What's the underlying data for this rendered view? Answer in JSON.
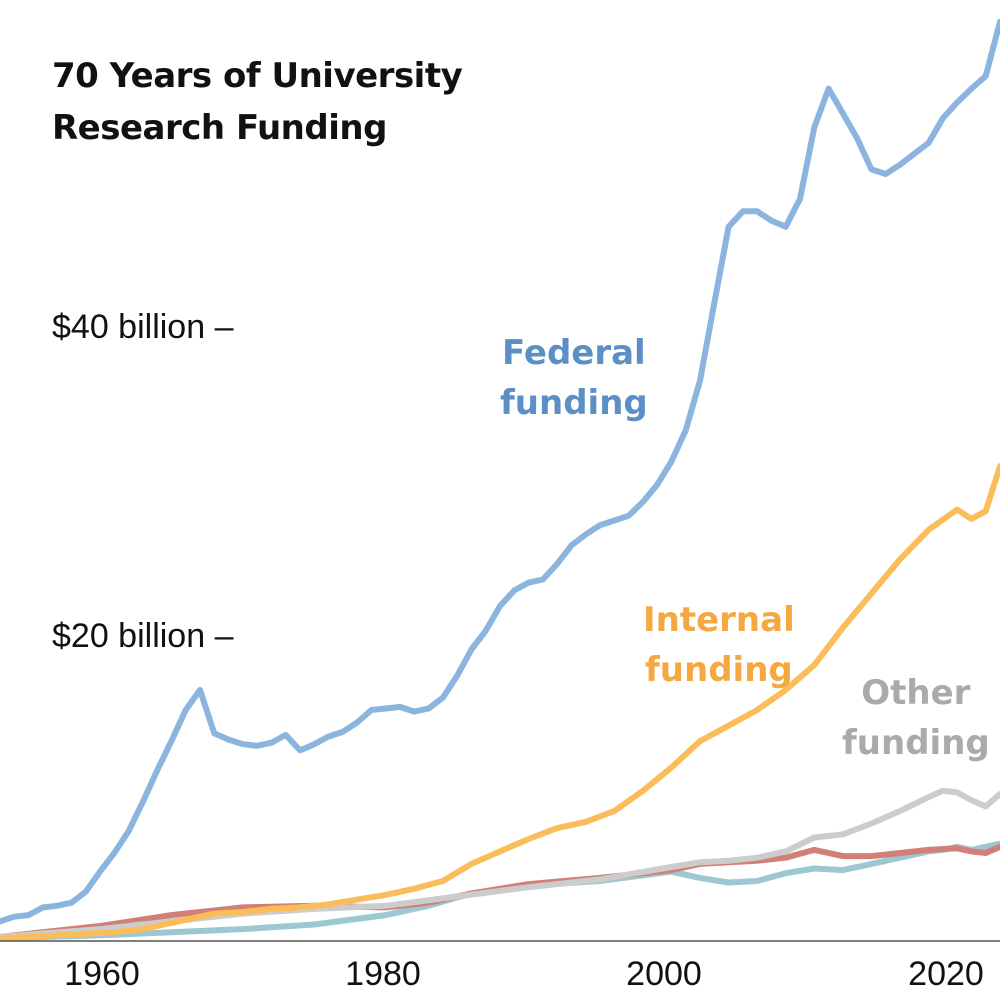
{
  "chart_data": {
    "type": "line",
    "title": "70 Years of University Research Funding",
    "title_lines": [
      "70 Years of University",
      "Research Funding"
    ],
    "xlim": [
      1953,
      2023
    ],
    "ylim": [
      0,
      60.5
    ],
    "x_ticks": [
      1960,
      1980,
      2000,
      2020
    ],
    "x_tick_labels": [
      "1960",
      "1980",
      "2000",
      "2020"
    ],
    "y_ticks": [
      20,
      40
    ],
    "y_tick_labels": [
      "$20 billion –",
      "$40 billion –"
    ],
    "grid": false,
    "legend": "inline labels",
    "series": [
      {
        "name": "Federal funding",
        "label_lines": [
          "Federal",
          "funding"
        ],
        "color": "#8bb4de",
        "label_color": "#5b8fc6",
        "x": [
          1953,
          1954,
          1955,
          1956,
          1957,
          1958,
          1959,
          1960,
          1961,
          1962,
          1963,
          1964,
          1965,
          1966,
          1967,
          1968,
          1969,
          1970,
          1971,
          1972,
          1973,
          1974,
          1975,
          1976,
          1977,
          1978,
          1979,
          1980,
          1981,
          1982,
          1983,
          1984,
          1985,
          1986,
          1987,
          1988,
          1989,
          1990,
          1991,
          1992,
          1993,
          1994,
          1995,
          1996,
          1997,
          1998,
          1999,
          2000,
          2001,
          2002,
          2003,
          2004,
          2005,
          2006,
          2007,
          2008,
          2009,
          2010,
          2011,
          2012,
          2013,
          2014,
          2015,
          2016,
          2017,
          2018,
          2019,
          2020,
          2021,
          2022,
          2023
        ],
        "values": [
          1.2,
          1.5,
          1.6,
          2.1,
          2.2,
          2.4,
          3.1,
          4.4,
          5.6,
          7.0,
          8.9,
          10.9,
          12.8,
          14.8,
          16.1,
          13.3,
          12.9,
          12.6,
          12.5,
          12.7,
          13.2,
          12.2,
          12.6,
          13.1,
          13.4,
          14.0,
          14.8,
          14.9,
          15.0,
          14.7,
          14.9,
          15.6,
          17.0,
          18.7,
          19.9,
          21.5,
          22.5,
          23.0,
          23.2,
          24.2,
          25.4,
          26.1,
          26.7,
          27.0,
          27.3,
          28.2,
          29.3,
          30.8,
          32.8,
          36.0,
          41.0,
          45.9,
          46.9,
          46.9,
          46.3,
          45.9,
          47.7,
          52.3,
          54.8,
          53.2,
          51.6,
          49.6,
          49.3,
          49.9,
          50.6,
          51.3,
          52.9,
          53.9,
          54.8,
          55.6,
          59.1
        ]
      },
      {
        "name": "Internal funding",
        "label_lines": [
          "Internal",
          "funding"
        ],
        "color": "#fbbd59",
        "label_color": "#f5a742",
        "x": [
          1953,
          1955,
          1957,
          1959,
          1961,
          1963,
          1965,
          1967,
          1968,
          1970,
          1972,
          1974,
          1976,
          1978,
          1980,
          1982,
          1984,
          1986,
          1988,
          1990,
          1992,
          1994,
          1996,
          1998,
          2000,
          2002,
          2004,
          2006,
          2008,
          2010,
          2012,
          2014,
          2016,
          2018,
          2020,
          2021,
          2022,
          2023
        ],
        "values": [
          0.1,
          0.2,
          0.3,
          0.4,
          0.5,
          0.7,
          1.1,
          1.5,
          1.7,
          1.8,
          2.0,
          2.1,
          2.3,
          2.6,
          2.9,
          3.3,
          3.8,
          4.9,
          5.7,
          6.5,
          7.2,
          7.6,
          8.3,
          9.6,
          11.1,
          12.8,
          13.8,
          14.8,
          16.1,
          17.7,
          20.1,
          22.3,
          24.5,
          26.4,
          27.7,
          27.1,
          27.6,
          30.5
        ]
      },
      {
        "name": "Other funding",
        "label_lines": [
          "Other",
          "funding"
        ],
        "color": "#cccccc",
        "label_color": "#aaaaaa",
        "x": [
          1953,
          1960,
          1965,
          1970,
          1975,
          1980,
          1985,
          1990,
          1995,
          2000,
          2002,
          2004,
          2006,
          2008,
          2010,
          2012,
          2014,
          2016,
          2018,
          2019,
          2020,
          2021,
          2022,
          2023
        ],
        "values": [
          0.2,
          0.7,
          1.2,
          1.7,
          2.0,
          2.2,
          2.8,
          3.4,
          3.9,
          4.7,
          5.0,
          5.1,
          5.3,
          5.7,
          6.6,
          6.8,
          7.5,
          8.3,
          9.2,
          9.6,
          9.5,
          9.0,
          8.6,
          9.4
        ]
      },
      {
        "name": "",
        "color": "#9cc8d1",
        "x": [
          1953,
          1960,
          1965,
          1970,
          1975,
          1980,
          1983,
          1986,
          1990,
          1995,
          2000,
          2002,
          2004,
          2006,
          2008,
          2010,
          2012,
          2014,
          2016,
          2018,
          2019,
          2020,
          2021,
          2022,
          2023
        ],
        "values": [
          0.1,
          0.3,
          0.5,
          0.7,
          1.0,
          1.6,
          2.2,
          3.0,
          3.5,
          3.8,
          4.4,
          4.0,
          3.7,
          3.8,
          4.3,
          4.6,
          4.5,
          4.9,
          5.3,
          5.7,
          5.8,
          6.0,
          5.8,
          6.0,
          6.2
        ]
      },
      {
        "name": "",
        "color": "#d27f78",
        "x": [
          1953,
          1960,
          1965,
          1970,
          1975,
          1980,
          1983,
          1986,
          1990,
          1995,
          2000,
          2002,
          2004,
          2006,
          2008,
          2010,
          2012,
          2014,
          2016,
          2018,
          2020,
          2021,
          2022,
          2023
        ],
        "values": [
          0.2,
          0.9,
          1.6,
          2.1,
          2.2,
          2.1,
          2.4,
          3.0,
          3.6,
          4.0,
          4.5,
          4.9,
          5.0,
          5.1,
          5.3,
          5.8,
          5.4,
          5.4,
          5.6,
          5.8,
          5.9,
          5.7,
          5.6,
          6.0
        ]
      }
    ]
  }
}
